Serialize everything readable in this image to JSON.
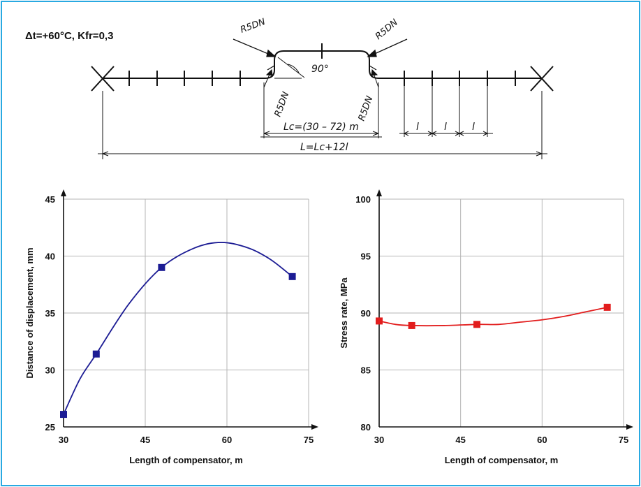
{
  "colors": {
    "frame": "#29a9e1",
    "series_left": "#1c1c94",
    "series_right": "#e21d1d",
    "grid": "#b5b5b5"
  },
  "diagram": {
    "condition": "Δt=+60°C, Kfr=0,3",
    "radius_label": "R5DN",
    "angle_label": "90°",
    "lc_label": "Lc=(30 – 72) m",
    "l_label": "l",
    "total_label": "L=Lc+12l"
  },
  "chart_data": [
    {
      "type": "line",
      "xlabel": "Length of compensator, m",
      "ylabel": "Distance of displacement, mm",
      "xlim": [
        30,
        75
      ],
      "ylim": [
        25,
        45
      ],
      "xticks": [
        30,
        45,
        60,
        75
      ],
      "yticks": [
        25,
        30,
        35,
        40,
        45
      ],
      "grid": true,
      "series": [
        {
          "points": [
            [
              30,
              26.1
            ],
            [
              36,
              31.4
            ],
            [
              48,
              39.0
            ],
            [
              72,
              38.2
            ]
          ],
          "marker": "square",
          "color": "#1c1c94"
        }
      ],
      "curve": [
        [
          30,
          26.1
        ],
        [
          33,
          29.2
        ],
        [
          36,
          31.4
        ],
        [
          42,
          35.8
        ],
        [
          48,
          39.0
        ],
        [
          54,
          40.7
        ],
        [
          59,
          41.2
        ],
        [
          64,
          40.7
        ],
        [
          68,
          39.7
        ],
        [
          72,
          38.2
        ]
      ]
    },
    {
      "type": "line",
      "xlabel": "Length of compensator, m",
      "ylabel": "Stress rate, MPa",
      "xlim": [
        30,
        75
      ],
      "ylim": [
        80,
        100
      ],
      "xticks": [
        30,
        45,
        60,
        75
      ],
      "yticks": [
        80,
        85,
        90,
        95,
        100
      ],
      "grid": true,
      "series": [
        {
          "points": [
            [
              30,
              89.3
            ],
            [
              36,
              88.9
            ],
            [
              48,
              89.0
            ],
            [
              72,
              90.5
            ]
          ],
          "marker": "square",
          "color": "#e21d1d"
        }
      ],
      "curve": [
        [
          30,
          89.3
        ],
        [
          33,
          89.0
        ],
        [
          36,
          88.9
        ],
        [
          42,
          88.9
        ],
        [
          48,
          89.0
        ],
        [
          52,
          89.0
        ],
        [
          56,
          89.2
        ],
        [
          60,
          89.4
        ],
        [
          64,
          89.7
        ],
        [
          68,
          90.1
        ],
        [
          72,
          90.5
        ]
      ]
    }
  ]
}
